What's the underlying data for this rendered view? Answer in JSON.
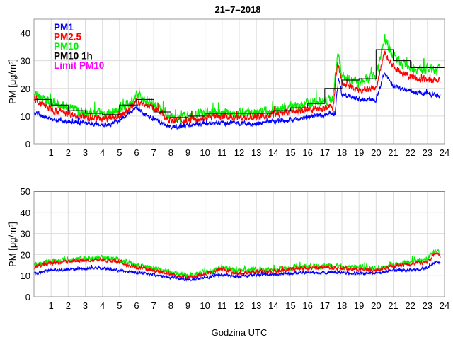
{
  "chart_data": [
    {
      "type": "line",
      "title": "21–7–2018",
      "xlabel": "",
      "ylabel": "PM [μg/m³]",
      "xlim": [
        0,
        24
      ],
      "ylim": [
        0,
        45
      ],
      "xticks": [
        1,
        2,
        3,
        4,
        5,
        6,
        7,
        8,
        9,
        10,
        11,
        12,
        13,
        14,
        15,
        16,
        17,
        18,
        19,
        20,
        21,
        22,
        23,
        24
      ],
      "yticks": [
        0,
        10,
        20,
        30,
        40
      ],
      "grid": true,
      "legend_placement": "top-left",
      "legend": [
        {
          "label": "PM1",
          "color": "#0000ff"
        },
        {
          "label": "PM2.5",
          "color": "#ff0000"
        },
        {
          "label": "PM10",
          "color": "#00ee00"
        },
        {
          "label": "PM10 1h",
          "color": "#000000"
        },
        {
          "label": "Limit PM10",
          "color": "#ff00ff"
        }
      ],
      "series": [
        {
          "name": "PM10",
          "color": "#00ee00",
          "noise": 1.6,
          "x": [
            0,
            0.5,
            1,
            1.5,
            2,
            2.5,
            3,
            3.5,
            4,
            4.5,
            5,
            5.5,
            6,
            6.5,
            7,
            7.5,
            8,
            8.5,
            9,
            9.5,
            10,
            11,
            12,
            13,
            13.5,
            14,
            14.5,
            15,
            15.5,
            16,
            16.5,
            17,
            17.5,
            17.75,
            18,
            18.5,
            19,
            19.5,
            20,
            20.5,
            21,
            21.5,
            22,
            22.5,
            23,
            23.5,
            23.75
          ],
          "y": [
            18,
            16,
            15,
            14,
            13,
            12,
            11.5,
            11,
            11,
            11,
            12.5,
            14.5,
            17,
            16,
            14,
            12,
            9.5,
            9.5,
            10,
            10.5,
            11,
            11,
            11,
            11,
            11.5,
            12,
            12.5,
            13,
            13.5,
            14.5,
            15.5,
            15,
            17,
            33,
            25,
            23,
            22,
            23,
            25,
            38,
            32,
            29,
            28,
            27,
            27,
            26,
            27
          ]
        },
        {
          "name": "PM2.5",
          "color": "#ff0000",
          "noise": 1.1,
          "x": [
            0,
            1,
            2,
            3,
            4,
            5,
            5.5,
            6,
            7,
            8,
            9,
            10,
            11,
            12,
            13,
            14,
            15,
            16,
            17,
            17.5,
            17.75,
            18,
            19,
            20,
            20.5,
            21,
            22,
            23,
            23.75
          ],
          "y": [
            16,
            12.5,
            11,
            9.5,
            9,
            10,
            12,
            15,
            13,
            8.5,
            8.5,
            9.5,
            10,
            9.5,
            9.5,
            10.5,
            11.5,
            12,
            13,
            13.5,
            30,
            22,
            19,
            20,
            33,
            28,
            24,
            23,
            23
          ]
        },
        {
          "name": "PM1",
          "color": "#0000ff",
          "noise": 0.7,
          "x": [
            0,
            1,
            2,
            3,
            4,
            4.5,
            5,
            6,
            6.5,
            7,
            8,
            9,
            10,
            11,
            12,
            13,
            14,
            15,
            16,
            17,
            17.6,
            17.8,
            18,
            19,
            20,
            20.5,
            21,
            22,
            23,
            23.75
          ],
          "y": [
            11,
            9,
            8,
            7.5,
            7,
            7,
            8.5,
            13,
            10.5,
            9,
            6,
            6.5,
            7.5,
            7.5,
            7.5,
            7,
            8,
            8.5,
            9.5,
            10.5,
            11,
            24,
            18,
            16,
            16,
            26,
            21,
            19,
            18,
            17
          ]
        }
      ],
      "steps": {
        "name": "PM10 1h",
        "color": "#000000",
        "x": [
          0,
          1,
          2,
          3,
          4,
          5,
          6,
          7,
          8,
          9,
          10,
          11,
          12,
          13,
          14,
          15,
          16,
          17,
          18,
          19,
          20,
          21,
          22,
          23
        ],
        "y": [
          16,
          14,
          12,
          11,
          10.5,
          14,
          16,
          11.5,
          9.5,
          10,
          11,
          11,
          11,
          11,
          12,
          13,
          14.5,
          20,
          23,
          23.5,
          34,
          30,
          27.5,
          27.5
        ]
      }
    },
    {
      "type": "line",
      "title": "",
      "xlabel": "Godzina UTC",
      "ylabel": "PM [μg/m³]",
      "xlim": [
        0,
        24
      ],
      "ylim": [
        0,
        50
      ],
      "xticks": [
        1,
        2,
        3,
        4,
        5,
        6,
        7,
        8,
        9,
        10,
        11,
        12,
        13,
        14,
        15,
        16,
        17,
        18,
        19,
        20,
        21,
        22,
        23,
        24
      ],
      "yticks": [
        0,
        10,
        20,
        30,
        40,
        50
      ],
      "grid": true,
      "limit": {
        "name": "Limit PM10",
        "value": 50,
        "color": "#ff00ff"
      },
      "series": [
        {
          "name": "PM10",
          "color": "#00ee00",
          "noise": 1.1,
          "x": [
            0,
            1,
            2,
            3,
            4,
            5,
            6,
            7,
            8,
            9,
            10,
            11,
            12,
            13,
            14,
            15,
            16,
            17,
            18,
            19,
            20,
            21,
            22,
            23,
            23.5,
            23.75
          ],
          "y": [
            15,
            17,
            17.5,
            18,
            18.5,
            17.5,
            15,
            13.5,
            11.5,
            10,
            11.5,
            14,
            12,
            13,
            13,
            13.5,
            14.5,
            15,
            14.5,
            14,
            13.5,
            15.5,
            16.5,
            18,
            22,
            20
          ]
        },
        {
          "name": "PM2.5",
          "color": "#ff0000",
          "noise": 0.8,
          "x": [
            0,
            1,
            2,
            3,
            4,
            5,
            6,
            7,
            8,
            9,
            10,
            11,
            12,
            13,
            14,
            15,
            16,
            17,
            18,
            19,
            20,
            21,
            22,
            23,
            23.5,
            23.75
          ],
          "y": [
            14,
            16,
            16.5,
            17,
            17.5,
            16.5,
            14,
            12.5,
            10.5,
            9,
            10.5,
            13,
            11,
            12,
            12,
            13,
            13.5,
            14,
            13.5,
            13,
            12.5,
            14.5,
            15.5,
            16.5,
            21,
            19
          ]
        },
        {
          "name": "PM1",
          "color": "#0000ff",
          "noise": 0.6,
          "x": [
            0,
            1,
            2,
            3,
            4,
            5,
            6,
            7,
            8,
            9,
            10,
            11,
            12,
            13,
            14,
            15,
            16,
            17,
            18,
            19,
            20,
            21,
            22,
            23,
            23.5,
            23.75
          ],
          "y": [
            11,
            12.5,
            13,
            13.5,
            13.5,
            12.5,
            11.5,
            10.5,
            9,
            8,
            9,
            10.5,
            9.5,
            10.5,
            10.5,
            11,
            11.5,
            11.5,
            11.5,
            11,
            11,
            12.5,
            12.5,
            13.5,
            17,
            16
          ]
        }
      ]
    }
  ]
}
